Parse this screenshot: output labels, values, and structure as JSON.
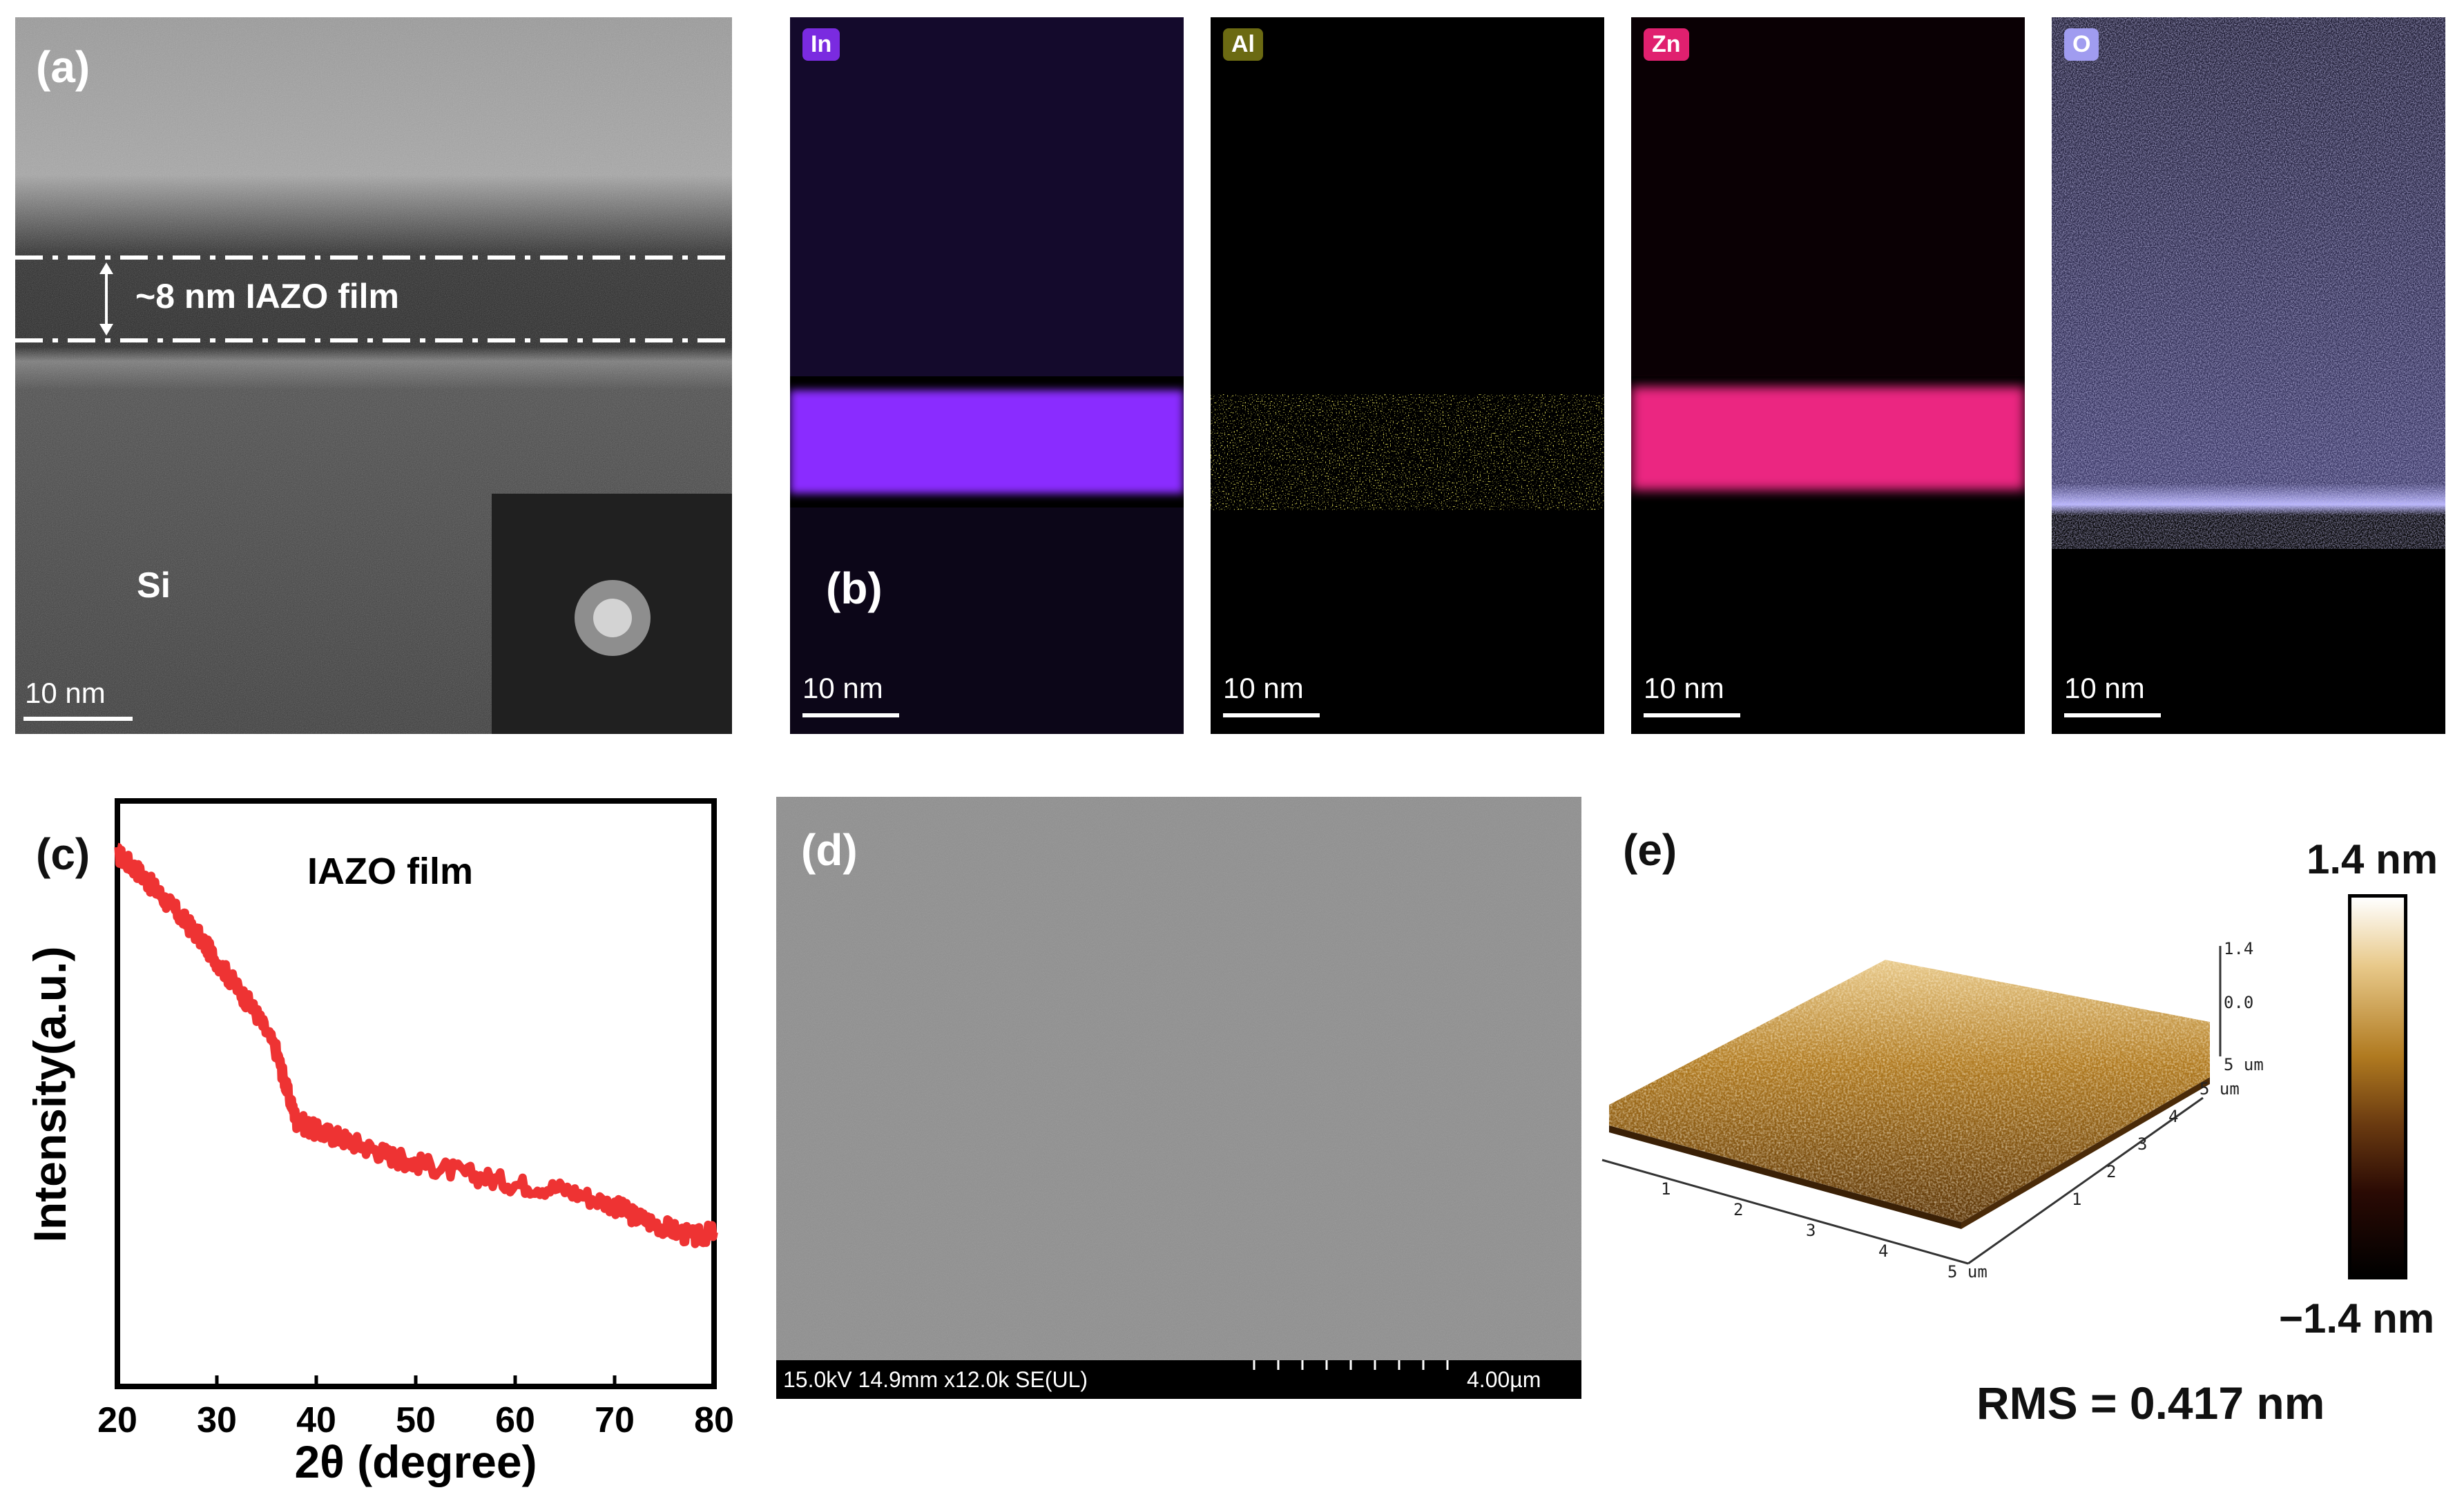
{
  "panels": {
    "a": {
      "letter": "(a)",
      "film_label": "~8 nm IAZO film",
      "substrate_label": "Si",
      "scalebar": "10 nm"
    },
    "b": {
      "letter": "(b)",
      "maps": [
        {
          "element": "In",
          "tag_color": "#7a2be0",
          "band_color": "#8a2cff",
          "scalebar": "10 nm"
        },
        {
          "element": "Al",
          "tag_color": "#6b6a12",
          "band_color": "#c9c21a",
          "scalebar": "10 nm"
        },
        {
          "element": "Zn",
          "tag_color": "#e0206f",
          "band_color": "#ff2a8c",
          "scalebar": "10 nm"
        },
        {
          "element": "O",
          "tag_color": "#a09cf0",
          "band_color": "#b8b4ff",
          "scalebar": "10 nm"
        }
      ]
    },
    "c": {
      "letter": "(c)"
    },
    "d": {
      "letter": "(d)",
      "info": "15.0kV 14.9mm x12.0k SE(UL)",
      "scale": "4.00µm"
    },
    "e": {
      "letter": "(e)",
      "scale_max": "1.4 nm",
      "scale_min": "−1.4 nm",
      "rms": "RMS = 0.417 nm",
      "z_ticks": [
        "1.4",
        "0.0"
      ],
      "x_ticks": [
        "1",
        "2",
        "3",
        "4",
        "5 um"
      ],
      "y_ticks": [
        "1",
        "2",
        "3",
        "4",
        "5 um"
      ],
      "corner_label": "5 um"
    }
  },
  "chart_data": {
    "type": "line",
    "title": "IAZO film",
    "xlabel": "2θ (degree)",
    "ylabel": "Intensity(a.u.)",
    "xlim": [
      20,
      80
    ],
    "x_ticks": [
      20,
      30,
      40,
      50,
      60,
      70,
      80
    ],
    "line_color": "#ee3333",
    "series": [
      {
        "x": [
          20,
          22,
          24,
          26,
          28,
          30,
          32,
          34,
          36,
          37,
          38,
          40,
          42,
          45,
          48,
          50,
          55,
          60,
          65,
          70,
          72,
          75,
          78,
          80
        ],
        "y": [
          1.0,
          0.97,
          0.93,
          0.89,
          0.85,
          0.8,
          0.75,
          0.7,
          0.63,
          0.56,
          0.5,
          0.48,
          0.47,
          0.45,
          0.43,
          0.42,
          0.4,
          0.38,
          0.37,
          0.34,
          0.32,
          0.3,
          0.28,
          0.29
        ]
      }
    ],
    "ylim": [
      0,
      1.1
    ]
  }
}
